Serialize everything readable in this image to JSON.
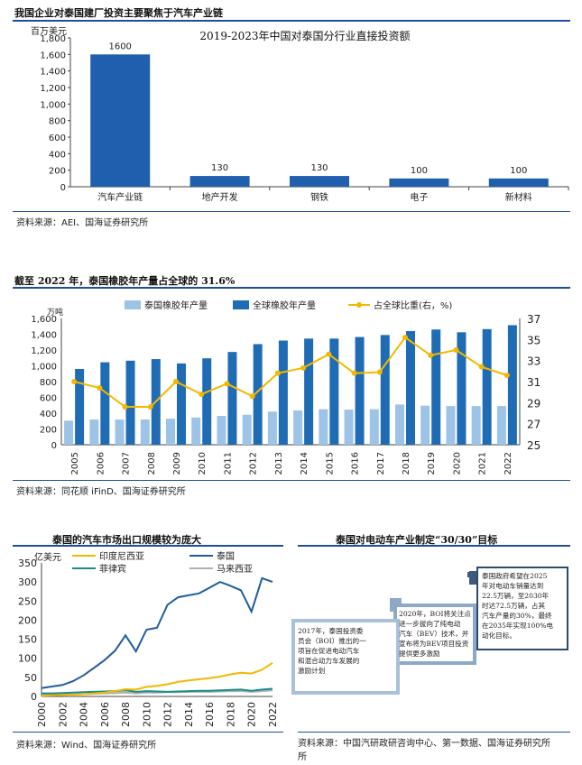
{
  "section1": {
    "title": "我国企业对泰国建厂投资主要聚焦于汽车产业链",
    "source": "资料来源：AEI、国海证券研究所"
  },
  "section2": {
    "title": "截至 2022 年，泰国橡胶年产量占全球的 31.6%",
    "source": "资料来源：同花顺 iFinD、国海证券研究所"
  },
  "section3": {
    "title": "泰国的汽车市场出口规模较为庞大",
    "source": "资料来源：Wind、国海证券研究所"
  },
  "section4": {
    "title": "泰国对电动车产业制定“30/30”目标",
    "source_line1": "资料来源：中国汽研政研咨询中心、第一数据、国海证券研究所",
    "source_line2": "所",
    "boxes": [
      {
        "lines": [
          "2017年，泰国投资委",
          "员会（BOI）推出的一",
          "项旨在促进电动汽车",
          "和混合动力车发展的",
          "激励计划"
        ]
      },
      {
        "lines": [
          "2020年，BOI将关注点",
          "进一步拔向了纯电动",
          "汽车（BEV）技术，并",
          "宣布将为BEV项目投资",
          "提供更多激励"
        ]
      },
      {
        "lines": [
          "泰国政府希望在2025",
          "年对电动车销量达到",
          "22.5万辆，至2030年",
          "时达72.5万辆，占其",
          "汽车产量的30%，最终",
          "在2035年实现100%电",
          "动化目标。"
        ]
      }
    ],
    "colors": {
      "dark": "#2e4a6b",
      "mid": "#7d9bbd",
      "light": "#a8c0d8"
    }
  },
  "chart_data": [
    {
      "type": "bar",
      "title": "2019-2023年中国对泰国分行业直接投资额",
      "ylabel": "百万美元",
      "categories": [
        "汽车产业链",
        "地产开发",
        "钢铁",
        "电子",
        "新材料"
      ],
      "values": [
        1600,
        130,
        130,
        100,
        100
      ],
      "data_labels": [
        "1600",
        "130",
        "130",
        "100",
        "100"
      ],
      "ylim": [
        0,
        1800
      ],
      "yticks": [
        "0",
        "200",
        "400",
        "600",
        "800",
        "1,000",
        "1,200",
        "1,400",
        "1,600",
        "1,800"
      ],
      "color": "#1f5fae"
    },
    {
      "type": "bar",
      "ylabel": "万吨",
      "categories": [
        "2005",
        "2006",
        "2007",
        "2008",
        "2009",
        "2010",
        "2011",
        "2012",
        "2013",
        "2014",
        "2015",
        "2016",
        "2017",
        "2018",
        "2019",
        "2020",
        "2021",
        "2022"
      ],
      "series": [
        {
          "name": "泰国橡胶年产量",
          "color": "#9dc3e6",
          "values": [
            305,
            320,
            320,
            320,
            330,
            345,
            365,
            380,
            420,
            435,
            450,
            445,
            450,
            510,
            495,
            490,
            490,
            490
          ]
        },
        {
          "name": "全球橡胶年产量",
          "color": "#1f6cb5",
          "values": [
            960,
            1045,
            1065,
            1085,
            1030,
            1095,
            1175,
            1275,
            1320,
            1345,
            1345,
            1365,
            1390,
            1440,
            1460,
            1425,
            1465,
            1515
          ]
        },
        {
          "name": "占全球比重(右，%)",
          "type": "line",
          "axis": "right",
          "color": "#f2b800",
          "values": [
            31.0,
            30.4,
            28.6,
            28.6,
            31.0,
            29.8,
            30.8,
            29.6,
            31.8,
            32.3,
            33.6,
            31.8,
            31.9,
            35.2,
            33.5,
            34.0,
            32.4,
            31.6
          ]
        }
      ],
      "ylim_left": [
        0,
        1600
      ],
      "yticks_left": [
        "0",
        "200",
        "400",
        "600",
        "800",
        "1,000",
        "1,200",
        "1,400",
        "1,600"
      ],
      "ylim_right": [
        25,
        37
      ],
      "yticks_right": [
        "25",
        "27",
        "29",
        "31",
        "33",
        "35",
        "37"
      ],
      "legend": "top"
    },
    {
      "type": "line",
      "ylabel": "亿美元",
      "x": [
        2000,
        2001,
        2002,
        2003,
        2004,
        2005,
        2006,
        2007,
        2008,
        2009,
        2010,
        2011,
        2012,
        2013,
        2014,
        2015,
        2016,
        2017,
        2018,
        2019,
        2020,
        2021,
        2022
      ],
      "xticks": [
        "2000",
        "2002",
        "2004",
        "2006",
        "2008",
        "2010",
        "2012",
        "2014",
        "2016",
        "2018",
        "2020",
        "2022"
      ],
      "series": [
        {
          "name": "印度尼西亚",
          "color": "#f2b800",
          "values": [
            2,
            3,
            4,
            5,
            6,
            8,
            10,
            14,
            19,
            18,
            25,
            28,
            32,
            38,
            42,
            45,
            48,
            52,
            58,
            62,
            60,
            70,
            88
          ]
        },
        {
          "name": "泰国",
          "color": "#1f5d9c",
          "values": [
            22,
            26,
            30,
            40,
            55,
            75,
            95,
            120,
            160,
            118,
            175,
            180,
            240,
            260,
            265,
            270,
            285,
            300,
            290,
            278,
            222,
            310,
            300
          ]
        },
        {
          "name": "菲律宾",
          "color": "#1a8c8c",
          "values": [
            8,
            8,
            9,
            10,
            11,
            12,
            13,
            14,
            16,
            12,
            14,
            13,
            12,
            13,
            14,
            15,
            15,
            16,
            17,
            18,
            15,
            18,
            20
          ]
        },
        {
          "name": "马来西亚",
          "color": "#b0b0b0",
          "values": [
            4,
            4,
            5,
            5,
            6,
            7,
            8,
            9,
            10,
            8,
            10,
            10,
            11,
            11,
            12,
            12,
            12,
            13,
            14,
            14,
            12,
            14,
            16
          ]
        }
      ],
      "ylim": [
        0,
        350
      ],
      "yticks": [
        "0",
        "50",
        "100",
        "150",
        "200",
        "250",
        "300",
        "350"
      ],
      "legend": "top"
    }
  ]
}
